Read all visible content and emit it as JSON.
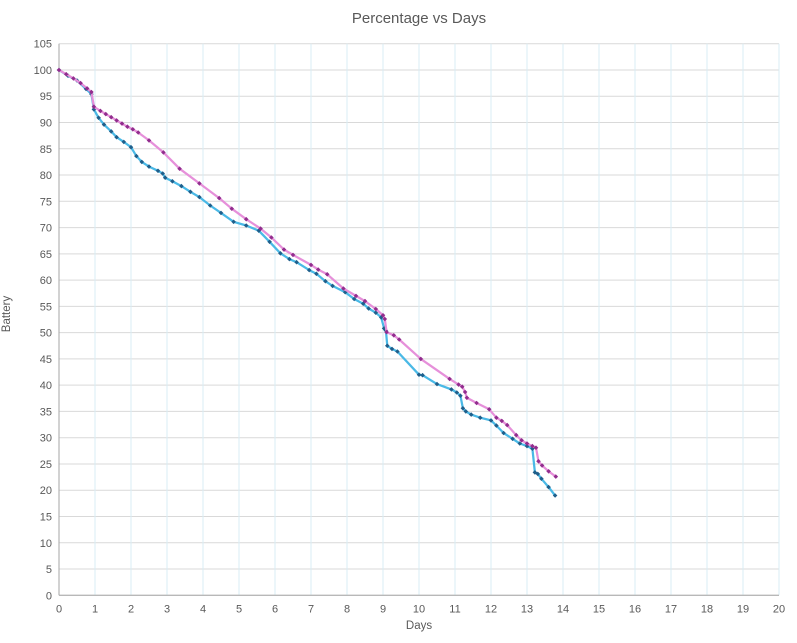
{
  "chart_data": {
    "type": "line",
    "title": "Percentage vs Days",
    "xlabel": "Days",
    "ylabel": "Battery",
    "xlim": [
      0,
      20
    ],
    "ylim": [
      0,
      105
    ],
    "x_tick_step": 1,
    "y_tick_step": 5,
    "grid": true,
    "legend_position": "none",
    "colors": {
      "vertical_gridline": "#d9edf5",
      "horizontal_gridline": "#d9d9d9",
      "axis_line": "#a6a6a6",
      "text": "#595959",
      "background": "#ffffff"
    },
    "series": [
      {
        "id": "cyan",
        "line_color": "#4ab9e6",
        "marker_color": "#1f5f8b",
        "points": [
          [
            0,
            100
          ],
          [
            0.25,
            98.9
          ],
          [
            0.5,
            98
          ],
          [
            0.75,
            96.4
          ],
          [
            0.9,
            95.4
          ],
          [
            0.97,
            92.5
          ],
          [
            1.1,
            90.9
          ],
          [
            1.25,
            89.6
          ],
          [
            1.45,
            88.3
          ],
          [
            1.6,
            87.2
          ],
          [
            1.8,
            86.3
          ],
          [
            2,
            85.3
          ],
          [
            2.15,
            83.6
          ],
          [
            2.3,
            82.5
          ],
          [
            2.5,
            81.6
          ],
          [
            2.75,
            80.8
          ],
          [
            2.88,
            80.3
          ],
          [
            2.95,
            79.5
          ],
          [
            3.15,
            78.8
          ],
          [
            3.4,
            77.9
          ],
          [
            3.65,
            76.8
          ],
          [
            3.9,
            75.8
          ],
          [
            4.2,
            74.2
          ],
          [
            4.5,
            72.8
          ],
          [
            4.85,
            71.1
          ],
          [
            5.2,
            70.4
          ],
          [
            5.55,
            69.4
          ],
          [
            5.85,
            67.3
          ],
          [
            6.15,
            65.1
          ],
          [
            6.4,
            64
          ],
          [
            6.6,
            63.4
          ],
          [
            6.95,
            61.9
          ],
          [
            7.15,
            61.2
          ],
          [
            7.4,
            59.8
          ],
          [
            7.6,
            58.9
          ],
          [
            7.95,
            57.7
          ],
          [
            8.2,
            56.4
          ],
          [
            8.45,
            55.5
          ],
          [
            8.6,
            54.6
          ],
          [
            8.8,
            53.8
          ],
          [
            8.95,
            52.9
          ],
          [
            9.03,
            50.8
          ],
          [
            9.08,
            50.4
          ],
          [
            9.12,
            47.5
          ],
          [
            9.25,
            46.9
          ],
          [
            9.4,
            46.4
          ],
          [
            10,
            42
          ],
          [
            10.1,
            41.9
          ],
          [
            10.5,
            40.2
          ],
          [
            10.9,
            39.2
          ],
          [
            11.05,
            38.6
          ],
          [
            11.15,
            38
          ],
          [
            11.22,
            35.6
          ],
          [
            11.3,
            35
          ],
          [
            11.45,
            34.4
          ],
          [
            11.7,
            33.8
          ],
          [
            12,
            33.3
          ],
          [
            12.15,
            32.3
          ],
          [
            12.35,
            30.9
          ],
          [
            12.6,
            29.8
          ],
          [
            12.8,
            28.9
          ],
          [
            13,
            28.4
          ],
          [
            13.15,
            27.9
          ],
          [
            13.22,
            23.4
          ],
          [
            13.3,
            23.1
          ],
          [
            13.4,
            22.2
          ],
          [
            13.6,
            20.6
          ],
          [
            13.78,
            19
          ]
        ]
      },
      {
        "id": "pink",
        "line_color": "#e690da",
        "marker_color": "#922d8e",
        "points": [
          [
            0,
            100
          ],
          [
            0.2,
            99.2
          ],
          [
            0.4,
            98.4
          ],
          [
            0.6,
            97.5
          ],
          [
            0.78,
            96.5
          ],
          [
            0.9,
            95.8
          ],
          [
            0.97,
            93
          ],
          [
            1.15,
            92.2
          ],
          [
            1.3,
            91.6
          ],
          [
            1.45,
            91
          ],
          [
            1.6,
            90.4
          ],
          [
            1.75,
            89.8
          ],
          [
            1.9,
            89.2
          ],
          [
            2.05,
            88.7
          ],
          [
            2.2,
            88.1
          ],
          [
            2.5,
            86.6
          ],
          [
            2.9,
            84.3
          ],
          [
            3.35,
            81.2
          ],
          [
            3.9,
            78.4
          ],
          [
            4.45,
            75.6
          ],
          [
            4.8,
            73.6
          ],
          [
            5.2,
            71.6
          ],
          [
            5.6,
            69.8
          ],
          [
            5.9,
            68.1
          ],
          [
            6.25,
            65.8
          ],
          [
            6.5,
            64.8
          ],
          [
            7,
            62.9
          ],
          [
            7.2,
            62
          ],
          [
            7.45,
            61.1
          ],
          [
            7.9,
            58.4
          ],
          [
            8.25,
            57
          ],
          [
            8.5,
            56
          ],
          [
            8.8,
            54.5
          ],
          [
            9,
            53.3
          ],
          [
            9.05,
            52.6
          ],
          [
            9.1,
            50.1
          ],
          [
            9.3,
            49.5
          ],
          [
            9.45,
            48.7
          ],
          [
            10.05,
            45
          ],
          [
            10.85,
            41.2
          ],
          [
            11.1,
            40.1
          ],
          [
            11.2,
            39.7
          ],
          [
            11.28,
            38.7
          ],
          [
            11.33,
            37.6
          ],
          [
            11.6,
            36.6
          ],
          [
            11.95,
            35.4
          ],
          [
            12.15,
            33.8
          ],
          [
            12.3,
            33.2
          ],
          [
            12.45,
            32.4
          ],
          [
            12.7,
            30.5
          ],
          [
            12.85,
            29.5
          ],
          [
            13,
            28.9
          ],
          [
            13.15,
            28.4
          ],
          [
            13.25,
            28.1
          ],
          [
            13.32,
            25.5
          ],
          [
            13.42,
            24.7
          ],
          [
            13.6,
            23.6
          ],
          [
            13.8,
            22.6
          ]
        ]
      }
    ]
  }
}
